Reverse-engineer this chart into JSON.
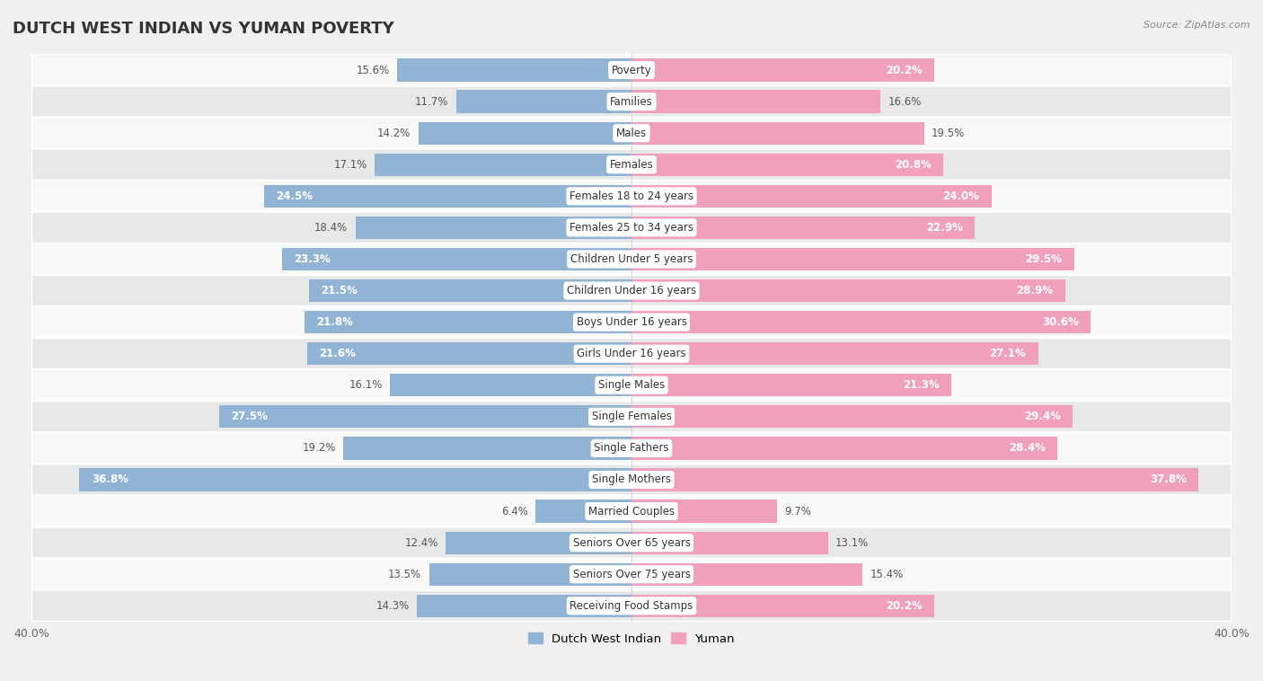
{
  "title": "DUTCH WEST INDIAN VS YUMAN POVERTY",
  "source": "Source: ZipAtlas.com",
  "categories": [
    "Poverty",
    "Families",
    "Males",
    "Females",
    "Females 18 to 24 years",
    "Females 25 to 34 years",
    "Children Under 5 years",
    "Children Under 16 years",
    "Boys Under 16 years",
    "Girls Under 16 years",
    "Single Males",
    "Single Females",
    "Single Fathers",
    "Single Mothers",
    "Married Couples",
    "Seniors Over 65 years",
    "Seniors Over 75 years",
    "Receiving Food Stamps"
  ],
  "dutch_values": [
    15.6,
    11.7,
    14.2,
    17.1,
    24.5,
    18.4,
    23.3,
    21.5,
    21.8,
    21.6,
    16.1,
    27.5,
    19.2,
    36.8,
    6.4,
    12.4,
    13.5,
    14.3
  ],
  "yuman_values": [
    20.2,
    16.6,
    19.5,
    20.8,
    24.0,
    22.9,
    29.5,
    28.9,
    30.6,
    27.1,
    21.3,
    29.4,
    28.4,
    37.8,
    9.7,
    13.1,
    15.4,
    20.2
  ],
  "dutch_color": "#92b4d4",
  "yuman_color": "#f0a0b8",
  "dutch_label": "Dutch West Indian",
  "yuman_label": "Yuman",
  "xlim": 40.0,
  "bg_color": "#f0f0f0",
  "row_color_even": "#f8f8f8",
  "row_color_odd": "#e8e8e8",
  "bar_height": 0.72,
  "title_fontsize": 13,
  "label_fontsize": 8.5,
  "value_fontsize": 8.5,
  "inside_threshold": 20.0
}
